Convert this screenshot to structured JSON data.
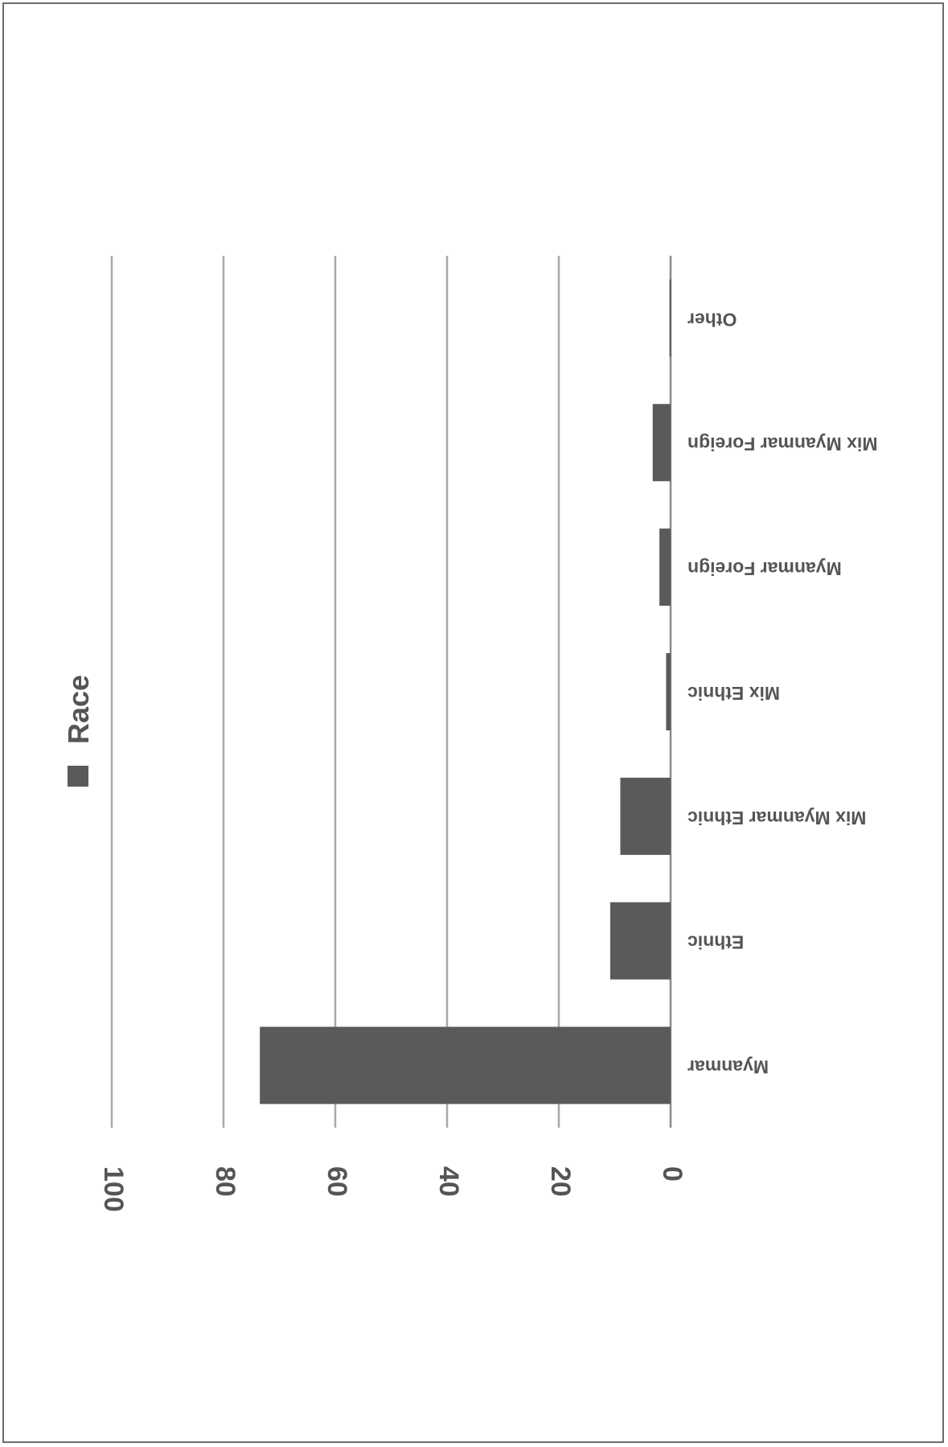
{
  "chart_data": {
    "type": "bar",
    "orientation": "vertical",
    "rotation": "upside-down (rotated 90° from a standard column chart)",
    "categories": [
      "Myanmar",
      "Ethnic",
      "Mix Myanmar Ethnic",
      "Mix Ethnic",
      "Myanmar Foreign",
      "Mix Myanmar Foreign",
      "Other"
    ],
    "series": [
      {
        "name": "Race",
        "values": [
          73.5,
          10.8,
          9.0,
          0.8,
          2.0,
          3.2,
          0.2
        ]
      }
    ],
    "ylim": [
      0,
      100
    ],
    "yticks": [
      "0",
      "20",
      "40",
      "60",
      "80",
      "100"
    ],
    "grid": true,
    "legend": "top",
    "colors": {
      "bar": "#5a5a5a",
      "grid": "#a8a8a8",
      "axis": "#8a8a8a",
      "text": "#555555"
    }
  }
}
